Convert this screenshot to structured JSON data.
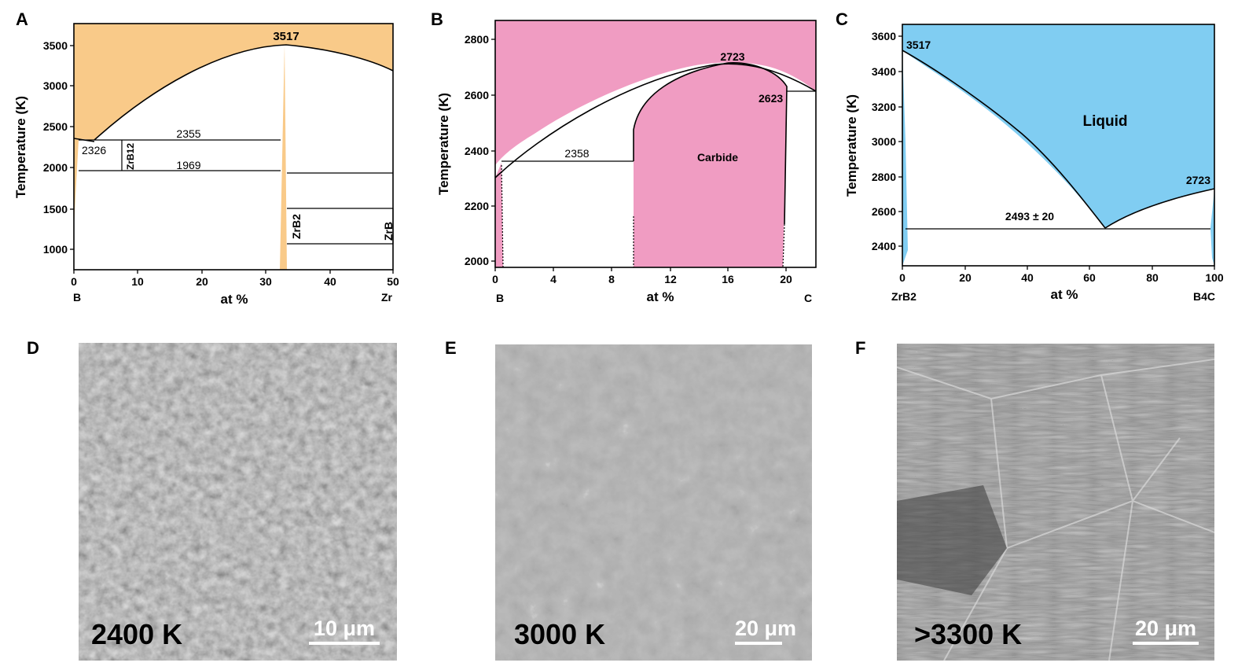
{
  "panels": {
    "A": {
      "letter": "A",
      "ylabel": "Temperature (K)",
      "xlabel": "at %",
      "x_left": "B",
      "x_right": "Zr",
      "yticks": [
        "1000",
        "1500",
        "2000",
        "2500",
        "3000",
        "3500"
      ],
      "xticks": [
        "0",
        "10",
        "20",
        "30",
        "40",
        "50"
      ],
      "peak_label": "3517",
      "eutectic_low": "2326",
      "eutectic_line": "2355",
      "line_1969": "1969",
      "phase_zrb12": "ZrB12",
      "phase_zrb2": "ZrB2",
      "phase_zrb": "ZrB",
      "liquid_color": "#f9ca89"
    },
    "B": {
      "letter": "B",
      "ylabel": "Temperature (K)",
      "xlabel": "at %",
      "x_left": "B",
      "x_right": "C",
      "yticks": [
        "2000",
        "2200",
        "2400",
        "2600",
        "2800"
      ],
      "xticks": [
        "0",
        "4",
        "8",
        "12",
        "16",
        "20"
      ],
      "peak_label": "2723",
      "right_label": "2623",
      "eutectic_label": "2358",
      "phase_label": "Carbide",
      "fill_color": "#f09cc2"
    },
    "C": {
      "letter": "C",
      "ylabel": "Temperature (K)",
      "xlabel": "at %",
      "x_left": "ZrB2",
      "x_right": "B4C",
      "yticks": [
        "2400",
        "2600",
        "2800",
        "3000",
        "3200",
        "3400",
        "3600"
      ],
      "xticks": [
        "0",
        "20",
        "40",
        "60",
        "80",
        "100"
      ],
      "left_label": "3517",
      "right_label": "2723",
      "eutectic_label": "2493 ± 20",
      "liquid_label": "Liquid",
      "liquid_color": "#80cdf2"
    },
    "D": {
      "letter": "D",
      "temperature": "2400 K",
      "scale": "10 μm"
    },
    "E": {
      "letter": "E",
      "temperature": "3000 K",
      "scale": "20 μm"
    },
    "F": {
      "letter": "F",
      "temperature": ">3300 K",
      "scale": "20 μm"
    }
  }
}
